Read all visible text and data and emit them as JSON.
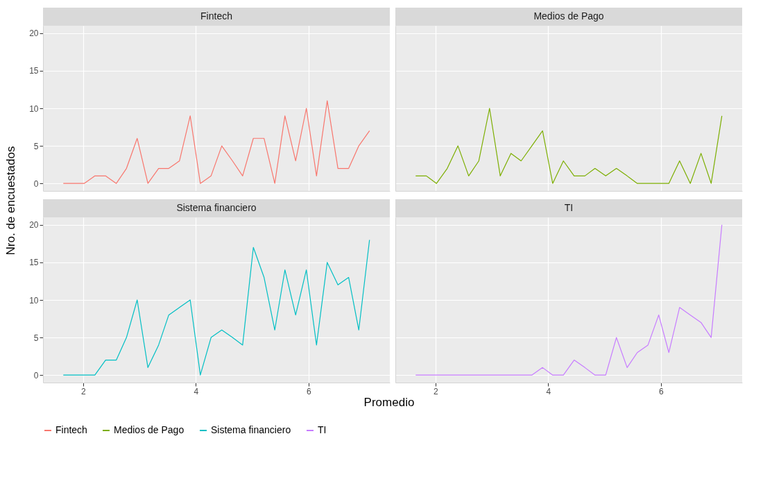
{
  "chart_data": [
    {
      "type": "line",
      "title": "Fintech",
      "ylabel": "Nro. de encuestados",
      "x": [
        1.65,
        1.84,
        2.02,
        2.21,
        2.4,
        2.59,
        2.77,
        2.96,
        3.15,
        3.34,
        3.52,
        3.71,
        3.9,
        4.08,
        4.27,
        4.46,
        4.65,
        4.83,
        5.02,
        5.21,
        5.4,
        5.58,
        5.77,
        5.96,
        6.14,
        6.33,
        6.52,
        6.71,
        6.89,
        7.08
      ],
      "xlim": [
        1.29,
        7.44
      ],
      "xticks": [
        2,
        4,
        6
      ],
      "ylim": [
        -1,
        21
      ],
      "yticks": [
        0,
        5,
        10,
        15,
        20
      ],
      "grid": true,
      "legend": "bottom",
      "tick_labels": "y",
      "series": [
        {
          "name": "Fintech",
          "color": "#f8766d",
          "values": [
            0,
            0,
            0,
            1,
            1,
            0,
            2,
            6,
            0,
            2,
            2,
            3,
            9,
            0,
            1,
            5,
            3,
            1,
            6,
            6,
            0,
            9,
            3,
            10,
            1,
            11,
            2,
            2,
            5,
            7
          ]
        }
      ]
    },
    {
      "type": "line",
      "title": "Medios de Pago",
      "x": [
        1.65,
        1.84,
        2.02,
        2.21,
        2.4,
        2.59,
        2.77,
        2.96,
        3.15,
        3.34,
        3.52,
        3.71,
        3.9,
        4.08,
        4.27,
        4.46,
        4.65,
        4.83,
        5.02,
        5.21,
        5.4,
        5.58,
        5.77,
        5.96,
        6.14,
        6.33,
        6.52,
        6.71,
        6.89,
        7.08
      ],
      "xlim": [
        1.29,
        7.44
      ],
      "xticks": [
        2,
        4,
        6
      ],
      "ylim": [
        -1,
        21
      ],
      "yticks": [
        0,
        5,
        10,
        15,
        20
      ],
      "grid": true,
      "legend": "bottom",
      "tick_labels": false,
      "series": [
        {
          "name": "Medios de Pago",
          "color": "#7cae00",
          "values": [
            1,
            1,
            0,
            2,
            5,
            1,
            3,
            10,
            1,
            4,
            3,
            5,
            7,
            0,
            3,
            1,
            1,
            2,
            1,
            2,
            1,
            0,
            0,
            0,
            0,
            3,
            0,
            4,
            0,
            9
          ]
        }
      ]
    },
    {
      "type": "line",
      "title": "Sistema financiero",
      "xlabel": "Promedio",
      "x": [
        1.65,
        1.84,
        2.02,
        2.21,
        2.4,
        2.59,
        2.77,
        2.96,
        3.15,
        3.34,
        3.52,
        3.71,
        3.9,
        4.08,
        4.27,
        4.46,
        4.65,
        4.83,
        5.02,
        5.21,
        5.4,
        5.58,
        5.77,
        5.96,
        6.14,
        6.33,
        6.52,
        6.71,
        6.89,
        7.08
      ],
      "xlim": [
        1.29,
        7.44
      ],
      "xticks": [
        2,
        4,
        6
      ],
      "ylim": [
        -1,
        21
      ],
      "yticks": [
        0,
        5,
        10,
        15,
        20
      ],
      "grid": true,
      "legend": "bottom",
      "series": [
        {
          "name": "Sistema financiero",
          "color": "#00bfc4",
          "values": [
            0,
            0,
            0,
            0,
            2,
            2,
            5,
            10,
            1,
            4,
            8,
            9,
            10,
            0,
            5,
            6,
            5,
            4,
            17,
            13,
            6,
            14,
            8,
            14,
            4,
            15,
            12,
            13,
            6,
            18
          ]
        }
      ]
    },
    {
      "type": "line",
      "title": "TI",
      "x": [
        1.65,
        1.84,
        2.02,
        2.21,
        2.4,
        2.59,
        2.77,
        2.96,
        3.15,
        3.34,
        3.52,
        3.71,
        3.9,
        4.08,
        4.27,
        4.46,
        4.65,
        4.83,
        5.02,
        5.21,
        5.4,
        5.58,
        5.77,
        5.96,
        6.14,
        6.33,
        6.52,
        6.71,
        6.89,
        7.08
      ],
      "xlim": [
        1.29,
        7.44
      ],
      "xticks": [
        2,
        4,
        6
      ],
      "ylim": [
        -1,
        21
      ],
      "yticks": [
        0,
        5,
        10,
        15,
        20
      ],
      "grid": true,
      "legend": "bottom",
      "tick_labels": "x",
      "series": [
        {
          "name": "TI",
          "color": "#c77cff",
          "values": [
            0,
            0,
            0,
            0,
            0,
            0,
            0,
            0,
            0,
            0,
            0,
            0,
            1,
            0,
            0,
            2,
            1,
            0,
            0,
            5,
            1,
            3,
            4,
            8,
            3,
            9,
            8,
            7,
            5,
            20
          ]
        }
      ]
    }
  ]
}
